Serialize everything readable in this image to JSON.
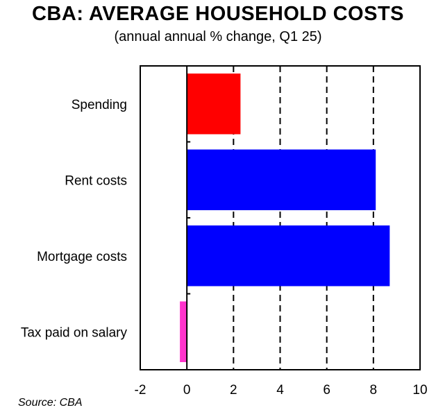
{
  "title": "CBA: AVERAGE HOUSEHOLD COSTS",
  "subtitle": "(annual annual % change, Q1 25)",
  "source": "Source: CBA",
  "colors": {
    "spending": "#ff0000",
    "costs": "#0000ff",
    "tax": "#ff33cc"
  },
  "chart_data": {
    "type": "bar",
    "orientation": "horizontal",
    "categories": [
      "Spending",
      "Rent costs",
      "Mortgage costs",
      "Tax paid on salary"
    ],
    "values": [
      2.3,
      8.1,
      8.7,
      -0.3
    ],
    "bar_colors": [
      "#ff0000",
      "#0000ff",
      "#0000ff",
      "#ff33cc"
    ],
    "xlim": [
      -2,
      10
    ],
    "xticks": [
      -2,
      0,
      2,
      4,
      6,
      8,
      10
    ],
    "grid": "vertical dashed at 2, 4, 6, 8",
    "xlabel": "",
    "ylabel": ""
  }
}
